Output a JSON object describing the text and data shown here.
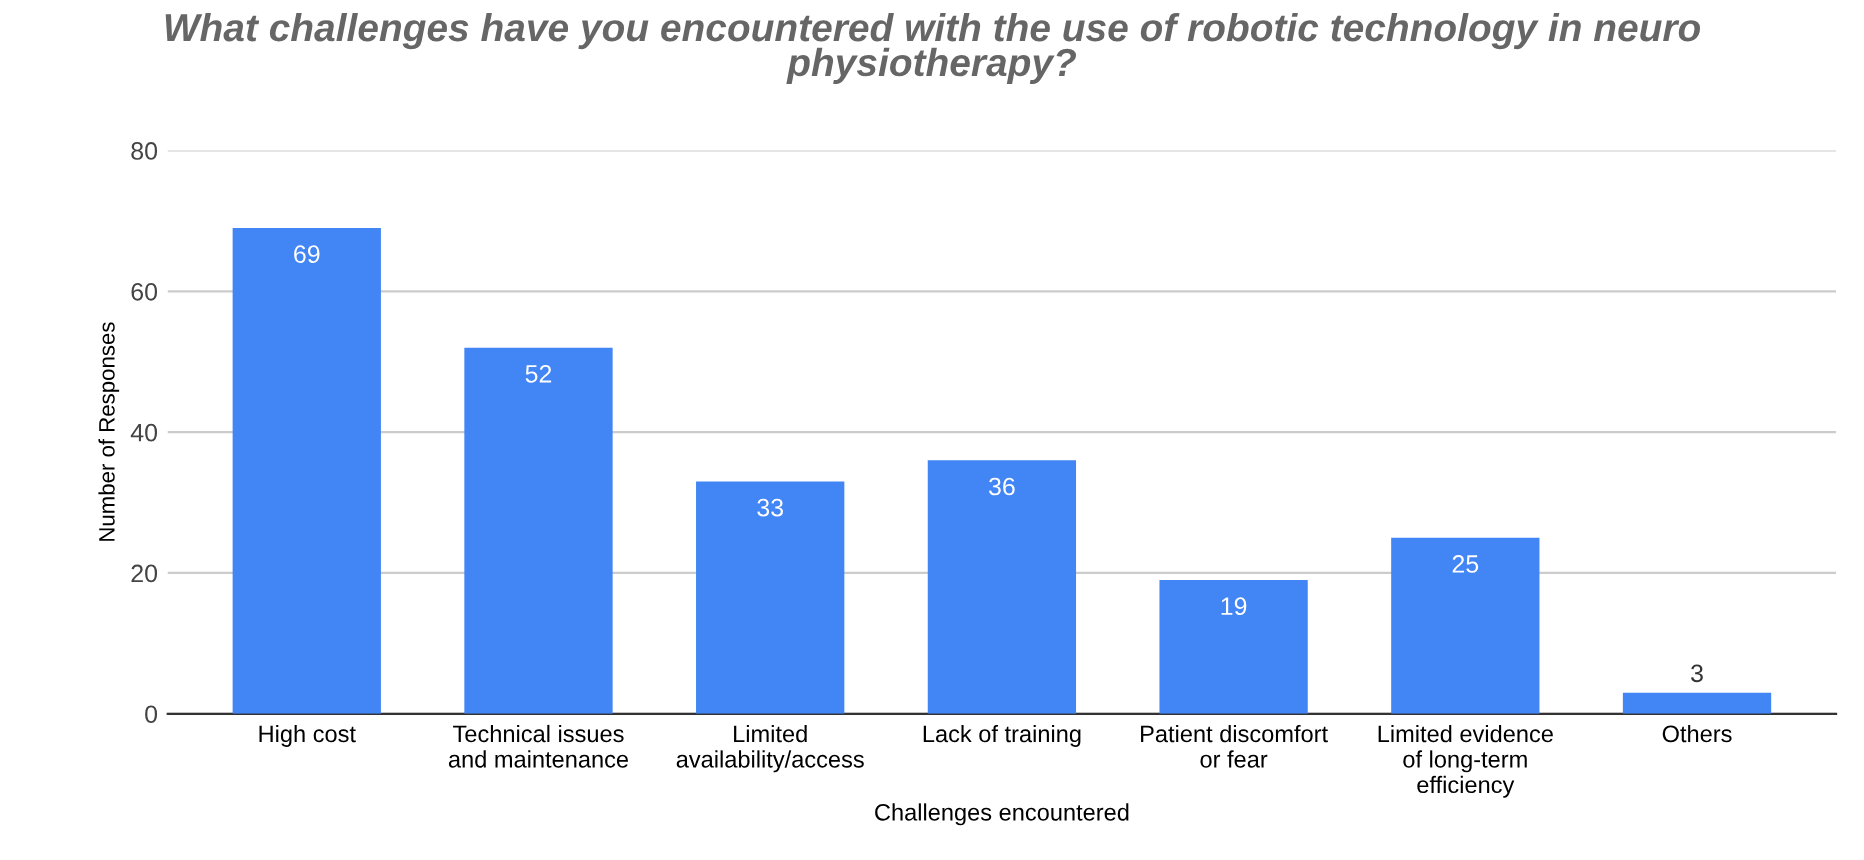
{
  "chart_data": {
    "type": "bar",
    "title": "What challenges have you encountered with the use of robotic technology in neuro\nphysiotherapy?",
    "xlabel": "Challenges encountered",
    "ylabel": "Number of Responses",
    "categories": [
      "High cost",
      "Technical issues\nand maintenance",
      "Limited\navailability/access",
      "Lack of training",
      "Patient discomfort\nor fear",
      "Limited evidence\nof long-term\nefficiency",
      "Others"
    ],
    "values": [
      69,
      52,
      33,
      36,
      19,
      25,
      3
    ],
    "color": "#4285f4",
    "ylim": [
      0,
      80
    ],
    "yticks": [
      0,
      20,
      40,
      60,
      80
    ],
    "grid": "y",
    "data_labels": true
  }
}
